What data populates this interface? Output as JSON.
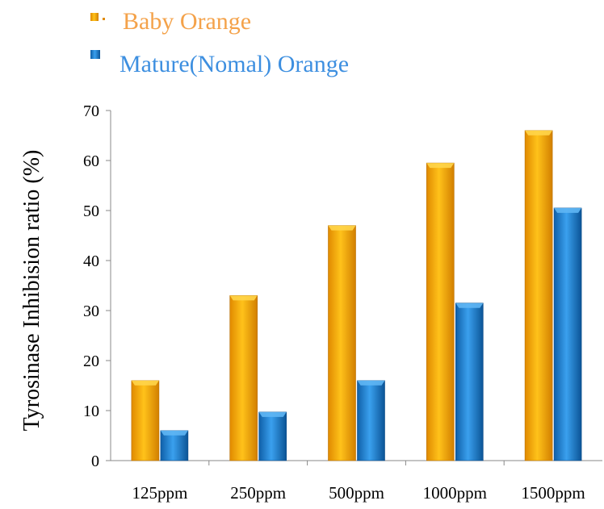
{
  "chart_data": {
    "type": "bar",
    "title": "",
    "xlabel": "",
    "ylabel": "Tyrosinase Inhibision ratio (%)",
    "ylim": [
      0,
      70
    ],
    "yticks": [
      0,
      10,
      20,
      30,
      40,
      50,
      60,
      70
    ],
    "grid": false,
    "legend_position": "top-left",
    "categories": [
      "125ppm",
      "250ppm",
      "500ppm",
      "1000ppm",
      "1500ppm"
    ],
    "series": [
      {
        "name": "Baby Orange",
        "values": [
          16,
          33,
          47,
          59.5,
          66
        ],
        "color": "#F5A000"
      },
      {
        "name": "Mature(Nomal) Orange",
        "values": [
          6,
          9.7,
          16,
          31.5,
          50.5
        ],
        "color": "#1E7CCB"
      }
    ]
  }
}
